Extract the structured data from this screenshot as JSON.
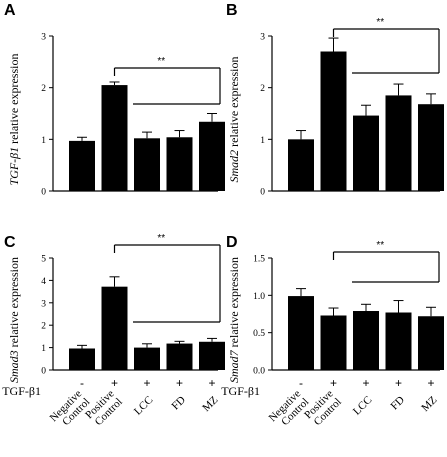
{
  "chart_data": [
    {
      "panel": "A",
      "type": "bar",
      "ylabel_italic": "TGF-β1",
      "ylabel_rest": " relative expression",
      "ylim": [
        0,
        3
      ],
      "yticks": [
        "0",
        "1",
        "2",
        "3"
      ],
      "values": [
        0.97,
        2.05,
        1.02,
        1.04,
        1.34
      ],
      "errors": [
        0.07,
        0.06,
        0.12,
        0.13,
        0.16
      ],
      "significance": "**"
    },
    {
      "panel": "B",
      "type": "bar",
      "ylabel_italic": "Smad2",
      "ylabel_rest": " relative expression",
      "ylim": [
        0,
        3
      ],
      "yticks": [
        "0",
        "1",
        "2",
        "3"
      ],
      "values": [
        1.0,
        2.7,
        1.46,
        1.85,
        1.68
      ],
      "errors": [
        0.17,
        0.26,
        0.2,
        0.22,
        0.2
      ],
      "significance": "**"
    },
    {
      "panel": "C",
      "type": "bar",
      "ylabel_italic": "Smad3",
      "ylabel_rest": " relative expression",
      "ylim": [
        0,
        5
      ],
      "yticks": [
        "0",
        "1",
        "2",
        "3",
        "4",
        "5"
      ],
      "values": [
        0.96,
        3.72,
        1.0,
        1.18,
        1.26
      ],
      "errors": [
        0.14,
        0.44,
        0.17,
        0.1,
        0.15
      ],
      "significance": "**"
    },
    {
      "panel": "D",
      "type": "bar",
      "ylabel_italic": "Smad7",
      "ylabel_rest": " relative expression",
      "ylim": [
        0,
        1.5
      ],
      "yticks": [
        "0.0",
        "0.5",
        "1.0",
        "1.5"
      ],
      "values": [
        0.99,
        0.73,
        0.79,
        0.77,
        0.72
      ],
      "errors": [
        0.1,
        0.1,
        0.09,
        0.16,
        0.12
      ],
      "significance": "**"
    }
  ],
  "categories": [
    "Negative Control",
    "Positive Control",
    "LCC",
    "FD",
    "MZ"
  ],
  "treatment_label": "TGF-β1",
  "treatment_signs": [
    "-",
    "+",
    "+",
    "+",
    "+"
  ]
}
